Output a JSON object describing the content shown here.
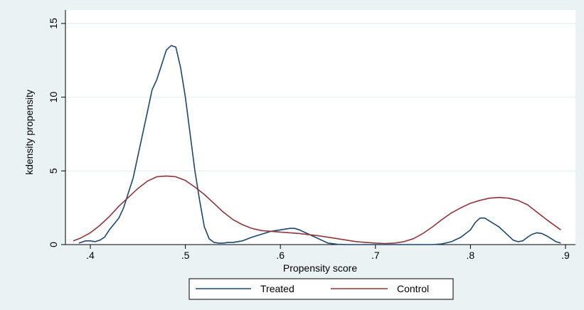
{
  "chart_data": {
    "type": "line",
    "title": "",
    "xlabel": "Propensity score",
    "ylabel": "kdensity propensity",
    "xlim": [
      0.38,
      0.9
    ],
    "ylim": [
      0,
      15
    ],
    "x_ticks": [
      0.4,
      0.5,
      0.6,
      0.7,
      0.8,
      0.9
    ],
    "x_tick_labels": [
      ".4",
      ".5",
      ".6",
      ".7",
      ".8",
      ".9"
    ],
    "y_ticks": [
      0,
      5,
      10,
      15
    ],
    "y_tick_labels": [
      "0",
      "5",
      "10",
      "15"
    ],
    "grid": true,
    "legend_position": "bottom",
    "series": [
      {
        "name": "Treated",
        "color": "#1a476f",
        "x": [
          0.388,
          0.395,
          0.4,
          0.405,
          0.41,
          0.415,
          0.42,
          0.425,
          0.43,
          0.435,
          0.44,
          0.445,
          0.45,
          0.455,
          0.46,
          0.465,
          0.47,
          0.475,
          0.48,
          0.485,
          0.49,
          0.495,
          0.5,
          0.505,
          0.51,
          0.515,
          0.52,
          0.525,
          0.53,
          0.535,
          0.54,
          0.545,
          0.55,
          0.56,
          0.57,
          0.58,
          0.59,
          0.6,
          0.61,
          0.615,
          0.62,
          0.63,
          0.64,
          0.65,
          0.66,
          0.67,
          0.68,
          0.7,
          0.72,
          0.74,
          0.76,
          0.77,
          0.78,
          0.79,
          0.8,
          0.805,
          0.81,
          0.815,
          0.82,
          0.825,
          0.83,
          0.84,
          0.845,
          0.85,
          0.855,
          0.86,
          0.865,
          0.87,
          0.875,
          0.88,
          0.885,
          0.89,
          0.895
        ],
        "y": [
          0.1,
          0.25,
          0.25,
          0.2,
          0.3,
          0.5,
          1.0,
          1.4,
          1.8,
          2.5,
          3.5,
          4.5,
          6.0,
          7.5,
          9.0,
          10.5,
          11.2,
          12.2,
          13.2,
          13.5,
          13.4,
          12.0,
          10.0,
          7.5,
          5.0,
          3.0,
          1.2,
          0.4,
          0.15,
          0.1,
          0.1,
          0.15,
          0.15,
          0.25,
          0.5,
          0.7,
          0.9,
          1.0,
          1.1,
          1.1,
          1.0,
          0.7,
          0.4,
          0.1,
          0.02,
          0.0,
          0.0,
          0.0,
          0.0,
          0.0,
          0.0,
          0.05,
          0.2,
          0.5,
          1.0,
          1.5,
          1.8,
          1.8,
          1.6,
          1.4,
          1.2,
          0.6,
          0.3,
          0.2,
          0.25,
          0.5,
          0.7,
          0.8,
          0.75,
          0.6,
          0.4,
          0.2,
          0.1
        ]
      },
      {
        "name": "Control",
        "color": "#90353b",
        "x": [
          0.382,
          0.39,
          0.4,
          0.41,
          0.42,
          0.43,
          0.44,
          0.45,
          0.46,
          0.47,
          0.48,
          0.49,
          0.5,
          0.51,
          0.52,
          0.53,
          0.54,
          0.55,
          0.56,
          0.57,
          0.58,
          0.6,
          0.62,
          0.64,
          0.66,
          0.68,
          0.7,
          0.71,
          0.72,
          0.73,
          0.74,
          0.75,
          0.76,
          0.77,
          0.78,
          0.79,
          0.8,
          0.81,
          0.82,
          0.83,
          0.84,
          0.85,
          0.86,
          0.87,
          0.88,
          0.895
        ],
        "y": [
          0.25,
          0.45,
          0.8,
          1.3,
          1.9,
          2.6,
          3.2,
          3.8,
          4.3,
          4.6,
          4.65,
          4.6,
          4.35,
          3.9,
          3.4,
          2.8,
          2.2,
          1.7,
          1.35,
          1.1,
          0.95,
          0.85,
          0.75,
          0.6,
          0.4,
          0.2,
          0.1,
          0.07,
          0.1,
          0.2,
          0.4,
          0.75,
          1.2,
          1.7,
          2.15,
          2.5,
          2.8,
          3.0,
          3.15,
          3.2,
          3.15,
          3.0,
          2.7,
          2.2,
          1.7,
          1.0
        ]
      }
    ]
  }
}
